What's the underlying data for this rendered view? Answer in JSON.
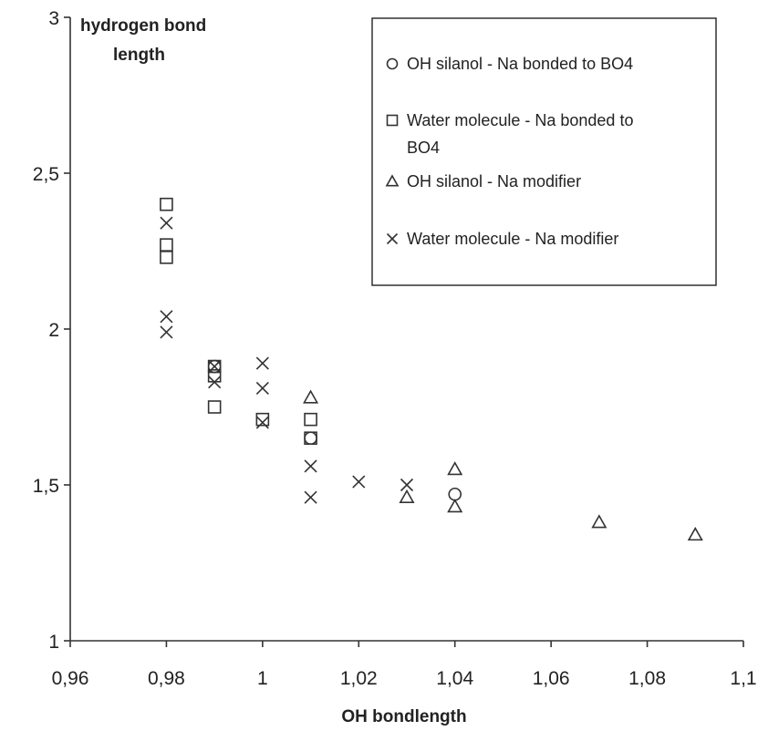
{
  "chart_data": {
    "type": "scatter",
    "xlabel": "OH bondlength",
    "ylabel_lines": [
      "hydrogen bond",
      "length"
    ],
    "xlim": [
      0.96,
      1.1
    ],
    "ylim": [
      1,
      3
    ],
    "x_ticks": [
      "0,96",
      "0,98",
      "1",
      "1,02",
      "1,04",
      "1,06",
      "1,08",
      "1,1"
    ],
    "y_ticks": [
      "1",
      "1,5",
      "2",
      "2,5",
      "3"
    ],
    "legend_position": "top-right",
    "series": [
      {
        "name_lines": [
          "OH silanol - Na bonded to BO4"
        ],
        "marker": "circle",
        "points": [
          [
            0.99,
            1.88
          ],
          [
            1.01,
            1.65
          ],
          [
            1.04,
            1.47
          ]
        ]
      },
      {
        "name_lines": [
          "Water molecule - Na bonded to",
          "BO4"
        ],
        "marker": "square",
        "points": [
          [
            0.98,
            2.4
          ],
          [
            0.98,
            2.27
          ],
          [
            0.98,
            2.23
          ],
          [
            0.99,
            1.88
          ],
          [
            0.99,
            1.85
          ],
          [
            0.99,
            1.75
          ],
          [
            1.0,
            1.71
          ],
          [
            1.01,
            1.71
          ],
          [
            1.01,
            1.65
          ]
        ]
      },
      {
        "name_lines": [
          "OH silanol - Na modifier"
        ],
        "marker": "triangle",
        "points": [
          [
            1.01,
            1.78
          ],
          [
            1.03,
            1.46
          ],
          [
            1.04,
            1.55
          ],
          [
            1.04,
            1.43
          ],
          [
            1.07,
            1.38
          ],
          [
            1.09,
            1.34
          ]
        ]
      },
      {
        "name_lines": [
          "Water molecule - Na modifier"
        ],
        "marker": "x",
        "points": [
          [
            0.98,
            2.34
          ],
          [
            0.98,
            2.04
          ],
          [
            0.98,
            1.99
          ],
          [
            0.99,
            1.88
          ],
          [
            0.99,
            1.83
          ],
          [
            1.0,
            1.89
          ],
          [
            1.0,
            1.81
          ],
          [
            1.0,
            1.7
          ],
          [
            1.01,
            1.56
          ],
          [
            1.01,
            1.46
          ],
          [
            1.02,
            1.51
          ],
          [
            1.03,
            1.5
          ]
        ]
      }
    ]
  }
}
